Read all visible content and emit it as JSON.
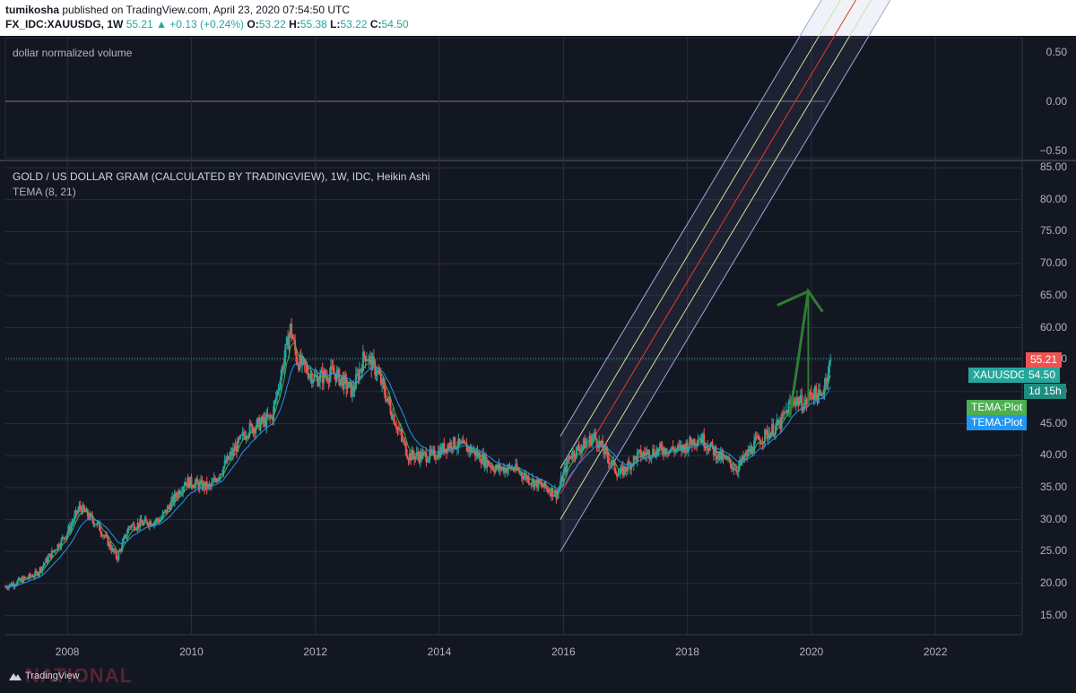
{
  "header": {
    "author": "tumikosha",
    "published": "published on TradingView.com, April 23, 2020 07:54:50 UTC",
    "symbol": "FX_IDC:XAUUSDG, 1W",
    "price": "55.21",
    "change": "+0.13 (+0.24%)",
    "o_label": "O:",
    "o": "53.22",
    "h_label": "H:",
    "h": "55.38",
    "l_label": "L:",
    "l": "53.22",
    "c_label": "C:",
    "c": "54.50"
  },
  "volume_pane": {
    "title": "dollar normalized volume",
    "ticks": [
      "0.50",
      "0.00",
      "−0.50"
    ]
  },
  "price_pane": {
    "title": "GOLD / US DOLLAR GRAM (CALCULATED BY TRADINGVIEW), 1W, IDC, Heikin Ashi",
    "indicator": "TEMA (8, 21)",
    "ticks": [
      "85.00",
      "80.00",
      "75.00",
      "70.00",
      "65.00",
      "60.00",
      "55.00",
      "50.00",
      "45.00",
      "40.00",
      "35.00",
      "30.00",
      "25.00",
      "20.00",
      "15.00"
    ]
  },
  "x_axis": {
    "ticks": [
      "2008",
      "2010",
      "2012",
      "2014",
      "2016",
      "2018",
      "2020",
      "2022"
    ]
  },
  "badges": {
    "last_price": "55.21",
    "symbol_name": "XAUUSDG",
    "symbol_price": "54.50",
    "countdown": "1d 15h",
    "tema1": "TEMA:Plot",
    "tema2": "TEMA:Plot"
  },
  "colors": {
    "up": "#26a69a",
    "down": "#ef5350",
    "tema_fast": "#4caf50",
    "tema_slow": "#2196f3",
    "channel_mid": "#e53935",
    "channel_inner": "#c5e1a5",
    "channel_outer": "#9fa8da",
    "arrow": "#2e7d32",
    "last_price_badge": "#ef5350",
    "symbol_badge": "#26a69a"
  },
  "footer": {
    "brand": "TradingView",
    "watermark": "NATIONAL"
  },
  "chart_data": {
    "type": "candlestick",
    "chart_style": "Heikin Ashi",
    "interval": "1W",
    "ylim": [
      12,
      86
    ],
    "xlim": [
      2007.0,
      2023.4
    ],
    "x_ticks": [
      2008,
      2010,
      2012,
      2014,
      2016,
      2018,
      2020,
      2022
    ],
    "y_ticks": [
      15,
      20,
      25,
      30,
      35,
      40,
      45,
      50,
      55,
      60,
      65,
      70,
      75,
      80,
      85
    ],
    "last_price": 55.21,
    "series": [
      {
        "name": "XAUUSDG",
        "x": [
          2007.0,
          2007.5,
          2008.0,
          2008.2,
          2008.5,
          2008.8,
          2009.0,
          2009.5,
          2009.9,
          2010.3,
          2010.5,
          2010.9,
          2011.3,
          2011.6,
          2011.7,
          2012.0,
          2012.3,
          2012.6,
          2012.8,
          2013.0,
          2013.3,
          2013.5,
          2013.9,
          2014.2,
          2014.5,
          2014.9,
          2015.2,
          2015.5,
          2015.9,
          2016.1,
          2016.5,
          2016.9,
          2017.2,
          2017.6,
          2017.9,
          2018.2,
          2018.5,
          2018.8,
          2019.1,
          2019.5,
          2019.7,
          2019.9,
          2020.0,
          2020.15,
          2020.3
        ],
        "values": [
          19.5,
          21.5,
          28,
          32,
          29,
          24,
          29,
          30,
          36,
          35,
          38,
          44,
          46,
          60,
          55,
          52,
          53,
          50,
          56,
          53,
          45,
          40,
          40,
          42,
          41,
          38,
          38,
          36,
          34,
          40,
          43,
          37,
          40,
          41,
          41,
          43,
          40,
          38,
          42,
          45,
          49,
          48,
          50,
          49,
          54.5
        ]
      }
    ]
  }
}
